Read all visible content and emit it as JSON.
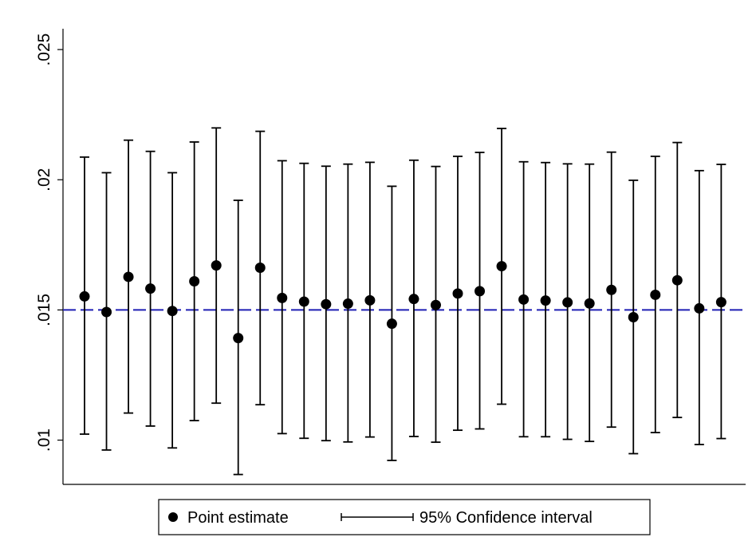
{
  "chart_data": {
    "type": "scatter",
    "title": "",
    "xlabel": "",
    "ylabel": "",
    "ylim": [
      0.0083,
      0.0258
    ],
    "yticks": [
      {
        "value": 0.01,
        "label": ".01"
      },
      {
        "value": 0.015,
        "label": ".015"
      },
      {
        "value": 0.02,
        "label": ".02"
      },
      {
        "value": 0.025,
        "label": ".025"
      }
    ],
    "grid": false,
    "reference_line": {
      "value": 0.015,
      "style": "dashed",
      "color": "#1f1fb4"
    },
    "legend": {
      "placement": "bottom",
      "point_label": "Point estimate",
      "interval_label": "95% Confidence interval"
    },
    "series": [
      {
        "name": "Point estimate",
        "x": [
          1,
          2,
          3,
          4,
          5,
          6,
          7,
          8,
          9,
          10,
          11,
          12,
          13,
          14,
          15,
          16,
          17,
          18,
          19,
          20,
          21,
          22,
          23,
          24,
          25,
          26,
          27,
          28,
          29,
          30
        ],
        "values": [
          0.01552,
          0.01492,
          0.01627,
          0.01582,
          0.01496,
          0.0161,
          0.01671,
          0.01392,
          0.01662,
          0.01546,
          0.01532,
          0.01522,
          0.01524,
          0.01537,
          0.01447,
          0.01542,
          0.01519,
          0.01563,
          0.01572,
          0.01668,
          0.0154,
          0.01536,
          0.01529,
          0.01525,
          0.01577,
          0.01472,
          0.01558,
          0.01614,
          0.01506,
          0.0153
        ]
      },
      {
        "name": "95% Confidence interval",
        "lower": [
          0.01023,
          0.00962,
          0.01104,
          0.01054,
          0.0097,
          0.01075,
          0.01142,
          0.00868,
          0.01136,
          0.01025,
          0.01007,
          0.00998,
          0.00993,
          0.01012,
          0.00922,
          0.01014,
          0.00992,
          0.01038,
          0.01043,
          0.01138,
          0.01013,
          0.01013,
          0.01003,
          0.00995,
          0.0105,
          0.00948,
          0.01029,
          0.01087,
          0.00983,
          0.01006
        ],
        "upper": [
          0.02087,
          0.02027,
          0.02152,
          0.02109,
          0.02027,
          0.02145,
          0.02199,
          0.01921,
          0.02186,
          0.02073,
          0.02063,
          0.02052,
          0.0206,
          0.02067,
          0.01975,
          0.02075,
          0.02051,
          0.0209,
          0.02105,
          0.02197,
          0.02069,
          0.02066,
          0.02061,
          0.0206,
          0.02106,
          0.01998,
          0.0209,
          0.02143,
          0.02035,
          0.02059
        ]
      }
    ]
  }
}
